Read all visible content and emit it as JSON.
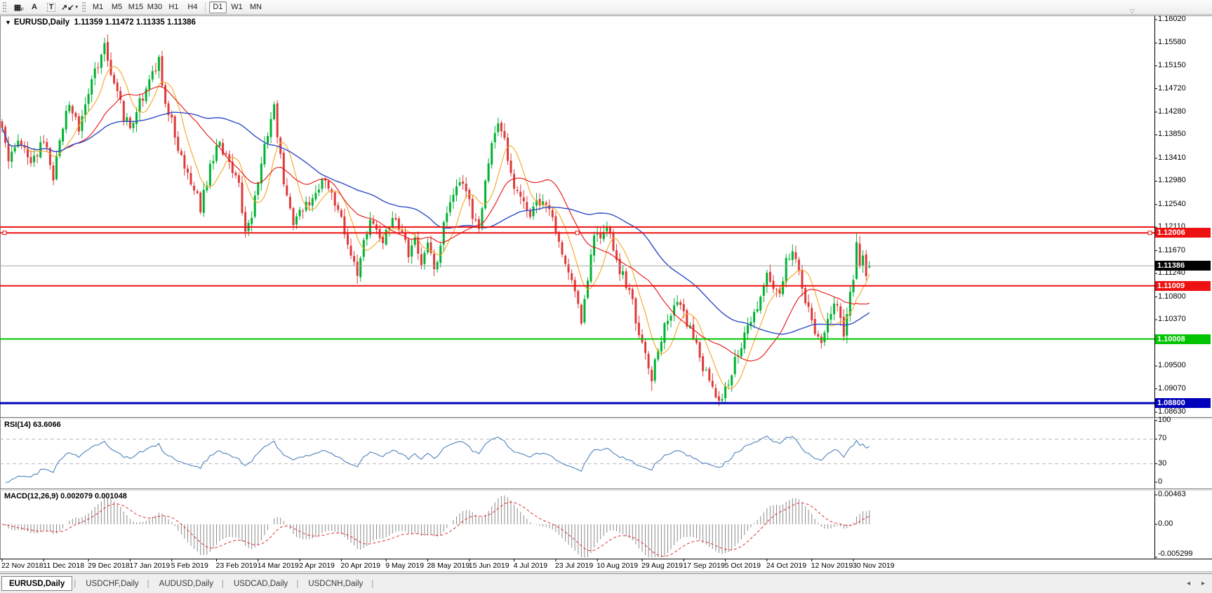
{
  "toolbar": {
    "icons": [
      {
        "name": "chart-grid-icon",
        "glyph": "▦",
        "badge": "F"
      },
      {
        "name": "font-tool-icon",
        "glyph": "A"
      },
      {
        "name": "text-label-tool-icon",
        "glyph": "T",
        "boxed": true
      },
      {
        "name": "arrow-objects-icon",
        "glyph": "↗↙",
        "caret": "▾"
      }
    ],
    "timeframes": [
      "M1",
      "M5",
      "M15",
      "M30",
      "H1",
      "H4",
      "D1",
      "W1",
      "MN"
    ],
    "active_timeframe": "D1"
  },
  "chart": {
    "title": "EURUSD,Daily",
    "ohlc": "1.11359 1.11472 1.11335 1.11386",
    "collapse_caret": "▼",
    "shift_marker": "▽"
  },
  "price_axis": {
    "ticks": [
      "1.16020",
      "1.15580",
      "1.15150",
      "1.14720",
      "1.14280",
      "1.13850",
      "1.13410",
      "1.12980",
      "1.12540",
      "1.12110",
      "1.11670",
      "1.11240",
      "1.10800",
      "1.10370",
      "1.09930",
      "1.09500",
      "1.09070",
      "1.08630"
    ]
  },
  "current_price": {
    "label": "1.11386",
    "value": 1.11386,
    "box_color": "#000000",
    "text_color": "#ffffff",
    "line_color": "#a6a6a6"
  },
  "hlines": [
    {
      "price": 1.12115,
      "color": "#ee1111",
      "width": 2,
      "label": ""
    },
    {
      "price": 1.12006,
      "color": "#ee1111",
      "width": 2,
      "label": "1.12006",
      "selected": true
    },
    {
      "price": 1.11009,
      "color": "#ee1111",
      "width": 2,
      "label": "1.11009"
    },
    {
      "price": 1.10008,
      "color": "#00c400",
      "width": 2,
      "label": "1.10008"
    },
    {
      "price": 1.088,
      "color": "#0000bb",
      "width": 3,
      "label": "1.08800"
    }
  ],
  "rsi_panel": {
    "label": "RSI(14) 63.6066",
    "ticks": [
      "100",
      "70",
      "30",
      "0"
    ],
    "levels": [
      70,
      30
    ],
    "line_color": "#4f81bd",
    "level_color": "#b8b8b8"
  },
  "macd_panel": {
    "label": "MACD(12,26,9) 0.002079 0.001048",
    "ticks": [
      "0.00463",
      "0.00",
      "-0.005299"
    ],
    "bar_color": "#8a8a8a",
    "signal_color": "#e03030"
  },
  "date_axis": {
    "labels": [
      "22 Nov 2018",
      "11 Dec 2018",
      "29 Dec 2018",
      "17 Jan 2019",
      "5 Feb 2019",
      "23 Feb 2019",
      "14 Mar 2019",
      "2 Apr 2019",
      "20 Apr 2019",
      "9 May 2019",
      "28 May 2019",
      "15 Jun 2019",
      "4 Jul 2019",
      "23 Jul 2019",
      "10 Aug 2019",
      "29 Aug 2019",
      "17 Sep 2019",
      "5 Oct 2019",
      "24 Oct 2019",
      "12 Nov 2019",
      "30 Nov 2019"
    ]
  },
  "tabs": {
    "items": [
      "EURUSD,Daily",
      "USDCHF,Daily",
      "AUDUSD,Daily",
      "USDCAD,Daily",
      "USDCNH,Daily"
    ],
    "active_index": 0,
    "left_arrow": "◂",
    "right_arrow": "▸"
  },
  "chart_data": {
    "type": "candlestick",
    "symbol": "EURUSD",
    "timeframe": "Daily",
    "current": {
      "open": 1.11359,
      "high": 1.11472,
      "low": 1.11335,
      "close": 1.11386
    },
    "y_range": [
      1.0863,
      1.1602
    ],
    "x_range": [
      "22 Nov 2018",
      "30 Nov 2019"
    ],
    "num_candles": 272,
    "grid": false,
    "up_color": "#00b232",
    "down_color": "#de3a3a",
    "horizontal_levels": [
      {
        "price": 1.12115,
        "type": "resistance",
        "color": "red"
      },
      {
        "price": 1.12006,
        "type": "resistance",
        "color": "red"
      },
      {
        "price": 1.11009,
        "type": "support-resistance",
        "color": "red"
      },
      {
        "price": 1.10008,
        "type": "support",
        "color": "green"
      },
      {
        "price": 1.088,
        "type": "major-support",
        "color": "blue"
      }
    ],
    "indicators": [
      {
        "name": "RSI",
        "period": 14,
        "current_value": 63.6066,
        "levels": [
          30,
          70
        ],
        "range": [
          0,
          100
        ]
      },
      {
        "name": "MACD",
        "fast": 12,
        "slow": 26,
        "signal": 9,
        "current_macd": 0.002079,
        "current_signal": 0.001048,
        "range": [
          -0.005299,
          0.00463
        ]
      },
      {
        "name": "MA-fast",
        "period": 8,
        "color": "#f5a623"
      },
      {
        "name": "MA-mid",
        "period": 21,
        "color": "#e81010"
      },
      {
        "name": "MA-slow",
        "period": 50,
        "color": "#2e4bc6"
      }
    ],
    "forced_points": {
      "high": {
        "32": 1.1568,
        "85": 1.1448,
        "267": 1.1199
      },
      "low": {
        "181": 1.1026,
        "203": 1.0903,
        "225": 1.0881
      }
    },
    "waypoints": [
      [
        0,
        1.1405
      ],
      [
        2,
        1.133
      ],
      [
        5,
        1.138
      ],
      [
        9,
        1.1325
      ],
      [
        13,
        1.1375
      ],
      [
        16,
        1.131
      ],
      [
        19,
        1.14
      ],
      [
        21,
        1.145
      ],
      [
        24,
        1.139
      ],
      [
        26,
        1.144
      ],
      [
        29,
        1.1505
      ],
      [
        32,
        1.1555
      ],
      [
        34,
        1.15
      ],
      [
        36,
        1.1465
      ],
      [
        38,
        1.142
      ],
      [
        40,
        1.1395
      ],
      [
        43,
        1.1445
      ],
      [
        46,
        1.149
      ],
      [
        49,
        1.1525
      ],
      [
        51,
        1.145
      ],
      [
        53,
        1.141
      ],
      [
        56,
        1.134
      ],
      [
        59,
        1.1295
      ],
      [
        62,
        1.125
      ],
      [
        64,
        1.13
      ],
      [
        66,
        1.1345
      ],
      [
        68,
        1.137
      ],
      [
        71,
        1.1335
      ],
      [
        74,
        1.13
      ],
      [
        76,
        1.1195
      ],
      [
        78,
        1.124
      ],
      [
        80,
        1.1305
      ],
      [
        83,
        1.139
      ],
      [
        85,
        1.1435
      ],
      [
        87,
        1.134
      ],
      [
        89,
        1.126
      ],
      [
        91,
        1.122
      ],
      [
        93,
        1.1235
      ],
      [
        96,
        1.1255
      ],
      [
        99,
        1.129
      ],
      [
        102,
        1.1295
      ],
      [
        104,
        1.126
      ],
      [
        106,
        1.123
      ],
      [
        109,
        1.1155
      ],
      [
        111,
        1.112
      ],
      [
        113,
        1.1185
      ],
      [
        115,
        1.1225
      ],
      [
        117,
        1.1205
      ],
      [
        119,
        1.1185
      ],
      [
        122,
        1.1235
      ],
      [
        124,
        1.1205
      ],
      [
        127,
        1.1165
      ],
      [
        129,
        1.1185
      ],
      [
        131,
        1.115
      ],
      [
        133,
        1.1175
      ],
      [
        135,
        1.113
      ],
      [
        137,
        1.1175
      ],
      [
        139,
        1.1245
      ],
      [
        141,
        1.1275
      ],
      [
        143,
        1.1305
      ],
      [
        145,
        1.1285
      ],
      [
        147,
        1.1235
      ],
      [
        149,
        1.1215
      ],
      [
        151,
        1.1295
      ],
      [
        153,
        1.137
      ],
      [
        155,
        1.14
      ],
      [
        157,
        1.137
      ],
      [
        159,
        1.1305
      ],
      [
        161,
        1.128
      ],
      [
        163,
        1.127
      ],
      [
        165,
        1.1225
      ],
      [
        167,
        1.1255
      ],
      [
        169,
        1.127
      ],
      [
        171,
        1.1235
      ],
      [
        173,
        1.1205
      ],
      [
        175,
        1.1155
      ],
      [
        177,
        1.1125
      ],
      [
        179,
        1.1085
      ],
      [
        181,
        1.104
      ],
      [
        183,
        1.1105
      ],
      [
        185,
        1.1205
      ],
      [
        187,
        1.1185
      ],
      [
        189,
        1.1215
      ],
      [
        191,
        1.1175
      ],
      [
        193,
        1.113
      ],
      [
        195,
        1.1105
      ],
      [
        197,
        1.1075
      ],
      [
        199,
        1.1005
      ],
      [
        201,
        1.097
      ],
      [
        203,
        1.093
      ],
      [
        205,
        1.0985
      ],
      [
        207,
        1.1025
      ],
      [
        209,
        1.1055
      ],
      [
        211,
        1.1075
      ],
      [
        213,
        1.1045
      ],
      [
        215,
        1.1015
      ],
      [
        217,
        1.0985
      ],
      [
        219,
        1.0945
      ],
      [
        221,
        1.092
      ],
      [
        223,
        1.09
      ],
      [
        225,
        1.0885
      ],
      [
        227,
        1.0925
      ],
      [
        229,
        1.096
      ],
      [
        231,
        1.099
      ],
      [
        233,
        1.102
      ],
      [
        235,
        1.105
      ],
      [
        237,
        1.1085
      ],
      [
        239,
        1.1125
      ],
      [
        241,
        1.1105
      ],
      [
        243,
        1.1085
      ],
      [
        245,
        1.115
      ],
      [
        247,
        1.116
      ],
      [
        249,
        1.1125
      ],
      [
        251,
        1.1075
      ],
      [
        253,
        1.1035
      ],
      [
        255,
        1.1
      ],
      [
        256,
        1.0992
      ],
      [
        258,
        1.104
      ],
      [
        260,
        1.107
      ],
      [
        262,
        1.104
      ],
      [
        263,
        1.101
      ],
      [
        264,
        1.1055
      ],
      [
        265,
        1.1085
      ],
      [
        266,
        1.111
      ],
      [
        267,
        1.1185
      ],
      [
        268,
        1.1145
      ],
      [
        269,
        1.116
      ],
      [
        270,
        1.113
      ],
      [
        271,
        1.11386
      ]
    ]
  }
}
